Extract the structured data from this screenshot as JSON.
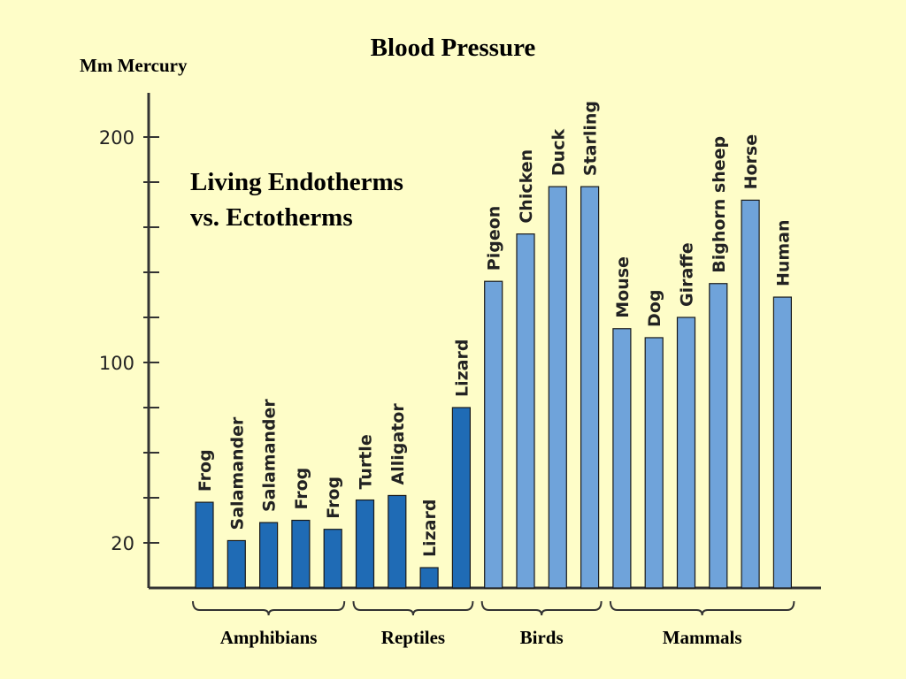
{
  "slide": {
    "title": "Blood Pressure",
    "y_unit_label": "Mm Mercury",
    "annotation_line1": "Living Endotherms",
    "annotation_line2": "vs. Ectotherms"
  },
  "colors": {
    "background": "#FEFDC8",
    "ectotherm_bar": "#1F6BB5",
    "endotherm_bar": "#6FA3DA",
    "axis": "#333333"
  },
  "chart_data": {
    "type": "bar",
    "title": "Blood Pressure",
    "ylabel": "Mm Mercury",
    "xlabel": "",
    "y_ticks": [
      20,
      100,
      200
    ],
    "y_axis_scale": "linear ticks at 20 intervals, with labels 20, 100 and 200",
    "ylim": [
      0,
      220
    ],
    "grid": false,
    "categories": [
      "Frog",
      "Salamander",
      "Salamander",
      "Frog",
      "Frog",
      "Turtle",
      "Alligator",
      "Lizard",
      "Lizard",
      "Pigeon",
      "Chicken",
      "Duck",
      "Starling",
      "Mouse",
      "Dog",
      "Giraffe",
      "Bighorn sheep",
      "Horse",
      "Human"
    ],
    "values": [
      38,
      21,
      29,
      30,
      26,
      39,
      41,
      9,
      80,
      136,
      157,
      178,
      178,
      115,
      111,
      120,
      135,
      172,
      129
    ],
    "groups": [
      {
        "label": "Amphibians",
        "categories": [
          "Frog",
          "Salamander",
          "Salamander",
          "Frog",
          "Frog"
        ],
        "endotherm": false
      },
      {
        "label": "Reptiles",
        "categories": [
          "Turtle",
          "Alligator",
          "Lizard",
          "Lizard"
        ],
        "endotherm": false
      },
      {
        "label": "Birds",
        "categories": [
          "Pigeon",
          "Chicken",
          "Duck",
          "Starling"
        ],
        "endotherm": true
      },
      {
        "label": "Mammals",
        "categories": [
          "Mouse",
          "Dog",
          "Giraffe",
          "Bighorn sheep",
          "Horse",
          "Human"
        ],
        "endotherm": true
      }
    ]
  }
}
